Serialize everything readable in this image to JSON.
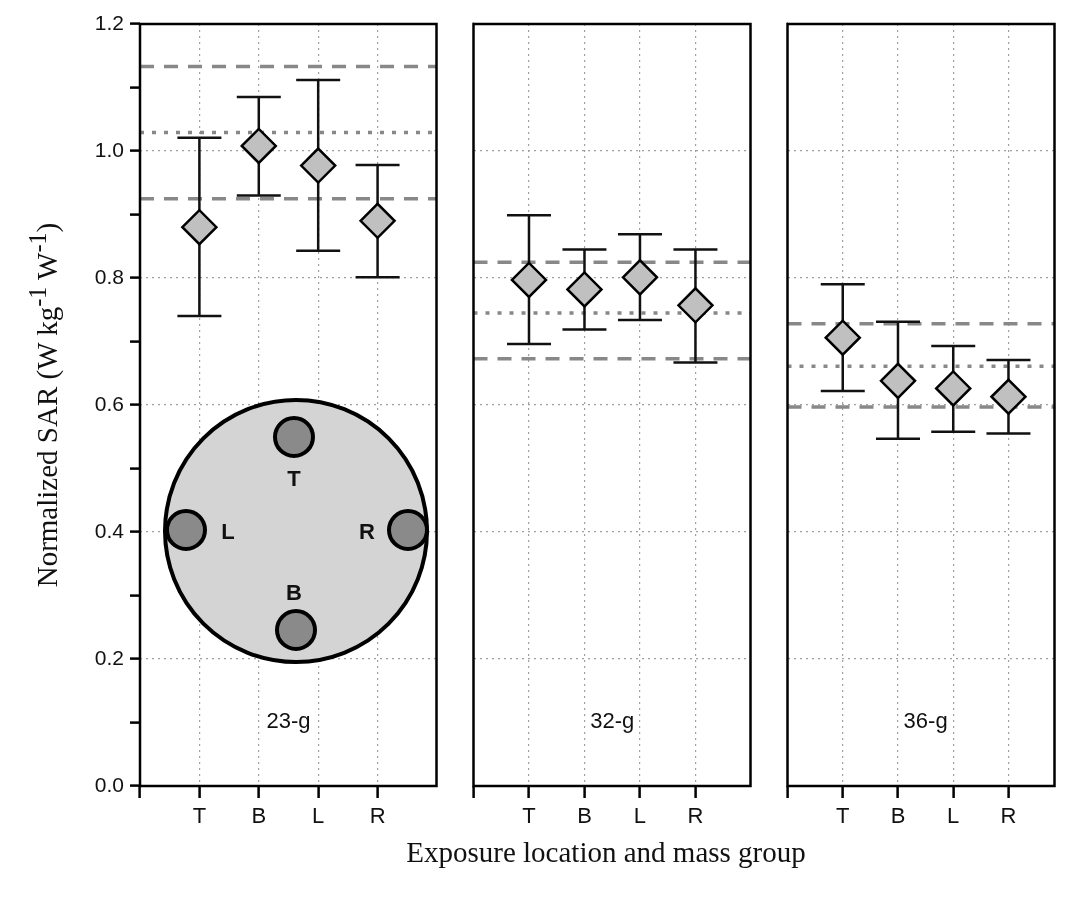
{
  "chart_data": [
    {
      "type": "scatter",
      "ylabel": "Normalized SAR (W kg$^{-1}$ W$^{-1}$)",
      "categories": [
        "T",
        "B",
        "L",
        "R"
      ],
      "ylim": [
        0,
        1.2
      ],
      "yticks": [
        {
          "value": 0,
          "label": "0.0"
        },
        {
          "value": 0.1,
          "label": null
        },
        {
          "value": 0.2,
          "label": "0.2"
        },
        {
          "value": 0.3,
          "label": null
        },
        {
          "value": 0.4,
          "label": "0.4"
        },
        {
          "value": 0.5,
          "label": null
        },
        {
          "value": 0.6,
          "label": "0.6"
        },
        {
          "value": 0.7,
          "label": null
        },
        {
          "value": 0.8,
          "label": "0.8"
        },
        {
          "value": 0.9,
          "label": null
        },
        {
          "value": 1.0,
          "label": "1.0"
        },
        {
          "value": 1.1,
          "label": null
        },
        {
          "value": 1.2,
          "label": "1.2"
        }
      ],
      "grid": true,
      "marker": "diamond",
      "series": [
        {
          "color": "#c0c0c0",
          "values": [
            0.88,
            1.008,
            0.977,
            0.89
          ],
          "errors": [
            [
              0.74,
              1.021
            ],
            [
              0.93,
              1.085
            ],
            [
              0.843,
              1.112
            ],
            [
              0.801,
              0.978
            ]
          ]
        }
      ],
      "ref_lines": [
        {
          "axis": "y",
          "value": 1.133,
          "color": "#888888",
          "line_style": "dashed"
        },
        {
          "axis": "y",
          "value": 1.029,
          "color": "#888888",
          "line_style": "dotted"
        },
        {
          "axis": "y",
          "value": 0.925,
          "color": "#888888",
          "line_style": "dashed"
        }
      ],
      "annotations": [
        "23-g",
        "T",
        "L",
        "R",
        "B"
      ]
    },
    {
      "type": "scatter",
      "xlabel": "Exposure location and mass group",
      "categories": [
        "T",
        "B",
        "L",
        "R"
      ],
      "ylim": [
        0,
        1.2
      ],
      "yticks": [
        0,
        0.2,
        0.4,
        0.6,
        0.8,
        1.0,
        1.2
      ],
      "tick_labels": "x",
      "grid": true,
      "marker": "diamond",
      "series": [
        {
          "color": "#c0c0c0",
          "values": [
            0.797,
            0.782,
            0.801,
            0.757
          ],
          "errors": [
            [
              0.696,
              0.899
            ],
            [
              0.719,
              0.845
            ],
            [
              0.734,
              0.869
            ],
            [
              0.667,
              0.845
            ]
          ]
        }
      ],
      "ref_lines": [
        {
          "axis": "y",
          "value": 0.825,
          "color": "#888888",
          "line_style": "dashed"
        },
        {
          "axis": "y",
          "value": 0.745,
          "color": "#888888",
          "line_style": "dotted"
        },
        {
          "axis": "y",
          "value": 0.673,
          "color": "#888888",
          "line_style": "dashed"
        }
      ],
      "annotations": [
        "32-g"
      ]
    },
    {
      "type": "scatter",
      "categories": [
        "T",
        "B",
        "L",
        "R"
      ],
      "ylim": [
        0,
        1.2
      ],
      "yticks": [
        0,
        0.2,
        0.4,
        0.6,
        0.8,
        1.0,
        1.2
      ],
      "tick_labels": "x",
      "grid": true,
      "marker": "diamond",
      "series": [
        {
          "color": "#c0c0c0",
          "values": [
            0.706,
            0.638,
            0.626,
            0.613
          ],
          "errors": [
            [
              0.622,
              0.79
            ],
            [
              0.547,
              0.731
            ],
            [
              0.558,
              0.693
            ],
            [
              0.555,
              0.671
            ]
          ]
        }
      ],
      "ref_lines": [
        {
          "axis": "y",
          "value": 0.728,
          "color": "#888888",
          "line_style": "dashed"
        },
        {
          "axis": "y",
          "value": 0.661,
          "color": "#888888",
          "line_style": "dotted"
        },
        {
          "axis": "y",
          "value": 0.597,
          "color": "#888888",
          "line_style": "dashed"
        }
      ],
      "annotations": [
        "36-g"
      ]
    }
  ]
}
